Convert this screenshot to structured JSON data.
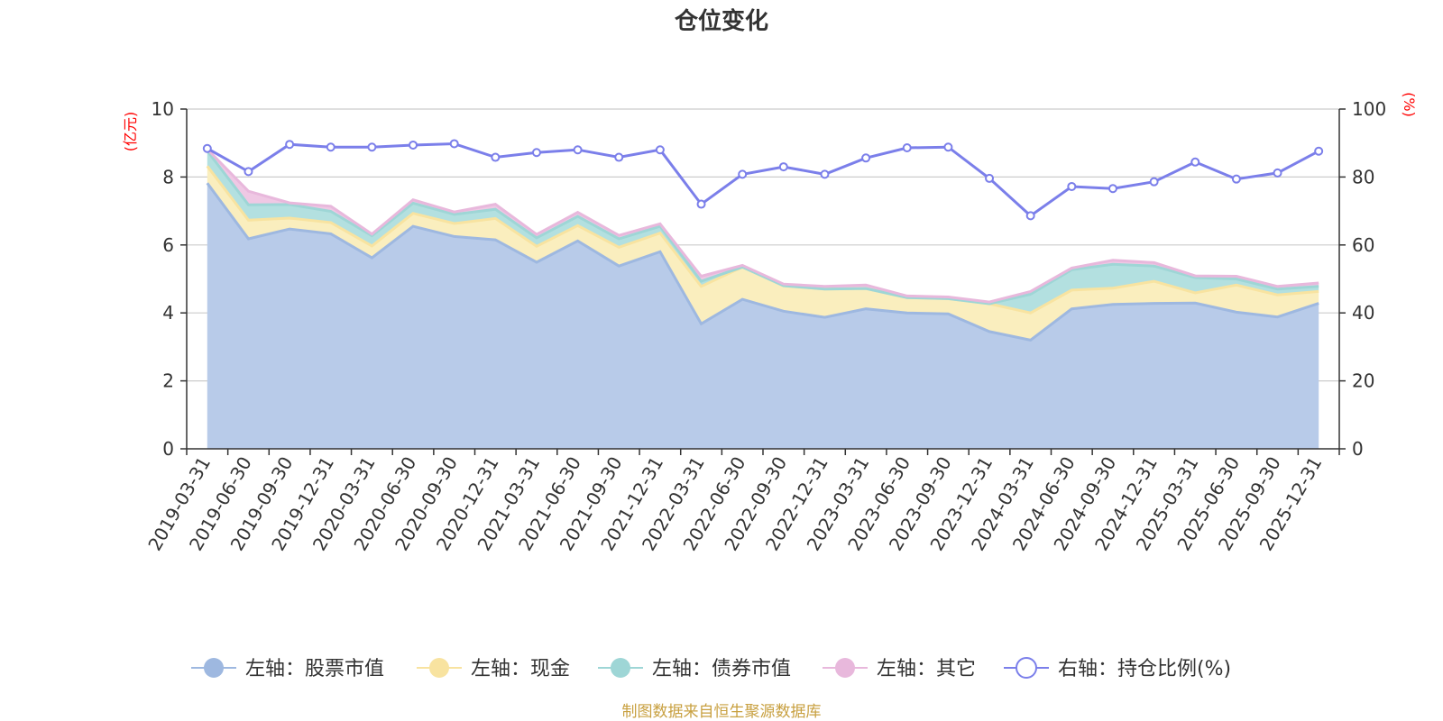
{
  "chart_data": {
    "type": "area",
    "title": "仓位变化",
    "left_axis": {
      "unit": "(亿元)",
      "ylim": [
        0,
        10
      ],
      "ticks": [
        0,
        2,
        4,
        6,
        8,
        10
      ]
    },
    "right_axis": {
      "unit": "(%)",
      "ylim": [
        0,
        100
      ],
      "ticks": [
        0,
        20,
        40,
        60,
        80,
        100
      ]
    },
    "categories": [
      "2019-03-31",
      "2019-06-30",
      "2019-09-30",
      "2019-12-31",
      "2020-03-31",
      "2020-06-30",
      "2020-09-30",
      "2020-12-31",
      "2021-03-31",
      "2021-06-30",
      "2021-09-30",
      "2021-12-31",
      "2022-03-31",
      "2022-06-30",
      "2022-09-30",
      "2022-12-31",
      "2023-03-31",
      "2023-06-30",
      "2023-09-30",
      "2023-12-31",
      "2024-03-31",
      "2024-06-30",
      "2024-09-30",
      "2024-12-31",
      "2025-03-31",
      "2025-06-30",
      "2025-09-30",
      "2025-12-31"
    ],
    "series": [
      {
        "name": "左轴：股票市值",
        "axis": "left",
        "color": "#9eb8e0",
        "fill": "#b8cbe9",
        "values": [
          7.82,
          6.18,
          6.47,
          6.33,
          5.62,
          6.55,
          6.25,
          6.15,
          5.49,
          6.12,
          5.38,
          5.8,
          3.68,
          4.4,
          4.05,
          3.87,
          4.12,
          4.0,
          3.97,
          3.45,
          3.2,
          4.12,
          4.25,
          4.28,
          4.29,
          4.02,
          3.88,
          4.28
        ]
      },
      {
        "name": "左轴：现金",
        "axis": "left",
        "color": "#f8e3a0",
        "fill": "#faeebe",
        "values": [
          0.5,
          0.55,
          0.32,
          0.33,
          0.35,
          0.38,
          0.38,
          0.63,
          0.47,
          0.45,
          0.55,
          0.55,
          1.1,
          0.95,
          0.75,
          0.83,
          0.6,
          0.45,
          0.45,
          0.82,
          0.8,
          0.55,
          0.48,
          0.65,
          0.3,
          0.8,
          0.65,
          0.35
        ]
      },
      {
        "name": "左轴：债券市值",
        "axis": "left",
        "color": "#9ed6d6",
        "fill": "#b3e0e0",
        "values": [
          0.45,
          0.45,
          0.4,
          0.33,
          0.3,
          0.3,
          0.27,
          0.27,
          0.25,
          0.27,
          0.25,
          0.2,
          0.15,
          0,
          0,
          0,
          0,
          0,
          0,
          0,
          0.55,
          0.6,
          0.7,
          0.45,
          0.45,
          0.18,
          0.17,
          0.15
        ]
      },
      {
        "name": "左轴：其它",
        "axis": "left",
        "color": "#e8b8dc",
        "fill": "#efc8e4",
        "values": [
          0.05,
          0.4,
          0.05,
          0.15,
          0.05,
          0.1,
          0.07,
          0.15,
          0.1,
          0.12,
          0.1,
          0.07,
          0.15,
          0.05,
          0.05,
          0.08,
          0.1,
          0.05,
          0.05,
          0.05,
          0.08,
          0.05,
          0.12,
          0.1,
          0.05,
          0.08,
          0.08,
          0.1
        ]
      },
      {
        "name": "右轴：持仓比例(%)",
        "axis": "right",
        "color": "#7b7fea",
        "values": [
          88.4,
          81.6,
          89.6,
          88.8,
          88.8,
          89.4,
          89.8,
          85.8,
          87.2,
          88.0,
          85.8,
          88.0,
          72.0,
          80.8,
          83.0,
          80.8,
          85.6,
          88.6,
          88.8,
          79.6,
          68.6,
          77.2,
          76.6,
          78.6,
          84.4,
          79.4,
          81.2,
          87.6
        ]
      }
    ],
    "source": "制图数据来自恒生聚源数据库"
  }
}
